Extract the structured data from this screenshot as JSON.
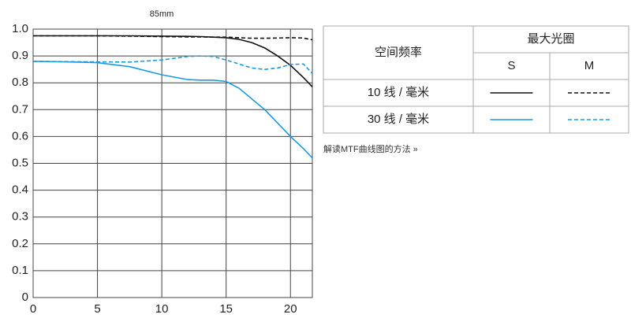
{
  "chart_data": {
    "type": "line",
    "title": "85mm",
    "x": [
      0,
      2.5,
      5,
      7.5,
      10,
      12,
      13,
      14,
      15,
      16,
      17,
      18,
      19,
      20,
      21,
      21.7
    ],
    "series": [
      {
        "color": "#111111",
        "dashed": false,
        "values": [
          0.975,
          0.975,
          0.975,
          0.975,
          0.974,
          0.973,
          0.972,
          0.97,
          0.968,
          0.962,
          0.95,
          0.93,
          0.9,
          0.865,
          0.82,
          0.785
        ]
      },
      {
        "color": "#111111",
        "dashed": true,
        "values": [
          0.975,
          0.975,
          0.975,
          0.974,
          0.972,
          0.971,
          0.971,
          0.97,
          0.97,
          0.968,
          0.966,
          0.966,
          0.967,
          0.968,
          0.967,
          0.96
        ]
      },
      {
        "color": "#1a9be0",
        "dashed": false,
        "values": [
          0.88,
          0.878,
          0.875,
          0.86,
          0.83,
          0.812,
          0.81,
          0.81,
          0.805,
          0.78,
          0.74,
          0.7,
          0.65,
          0.6,
          0.555,
          0.52
        ]
      },
      {
        "color": "#1a9be0",
        "dashed": true,
        "values": [
          0.88,
          0.879,
          0.878,
          0.877,
          0.885,
          0.898,
          0.9,
          0.898,
          0.885,
          0.87,
          0.855,
          0.85,
          0.855,
          0.868,
          0.87,
          0.835
        ]
      }
    ],
    "xlim": [
      0,
      21.7
    ],
    "ylim": [
      0,
      1
    ],
    "xticks": [
      0,
      5,
      10,
      15,
      20
    ],
    "yticks": [
      0,
      0.1,
      0.2,
      0.3,
      0.4,
      0.5,
      0.6,
      0.7,
      0.8,
      0.9,
      {
        "value": 1,
        "label": "1.0"
      }
    ],
    "grid": true,
    "legend_table": {
      "row_header": "空间频率",
      "column_header": "最大光圈",
      "columns": [
        "S",
        "M"
      ],
      "rows": [
        "10 线 / 毫米",
        "30 线 / 毫米"
      ]
    },
    "link": "解读MTF曲线图的方法 »"
  }
}
